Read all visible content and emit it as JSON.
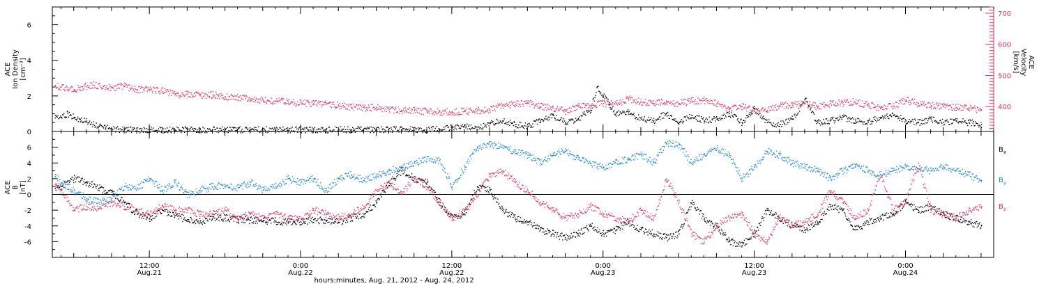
{
  "figure": {
    "xlabel": "hours:minutes, Aug. 21, 2012 - Aug. 24, 2012",
    "x_ticks": [
      {
        "t": 12,
        "time": "12:00",
        "date": "Aug.21"
      },
      {
        "t": 24,
        "time": "0:00",
        "date": "Aug.22"
      },
      {
        "t": 36,
        "time": "12:00",
        "date": "Aug.22"
      },
      {
        "t": 48,
        "time": "0:00",
        "date": "Aug.23"
      },
      {
        "t": 60,
        "time": "12:00",
        "date": "Aug.23"
      },
      {
        "t": 72,
        "time": "0:00",
        "date": "Aug.24"
      }
    ]
  },
  "colors": {
    "black": "#000000",
    "pink": "#e8325e",
    "blue": "#1f88e6"
  },
  "chart_data": [
    {
      "type": "scatter",
      "panel": "top",
      "xlim_hours_from_Aug21_00": [
        4.3,
        79.0
      ],
      "left_axis": {
        "label_lines": [
          "ACE",
          "Ion Density",
          "[cm⁻³]"
        ],
        "ylim": [
          0,
          7
        ],
        "ticks": [
          0,
          2,
          4,
          6
        ]
      },
      "right_axis": {
        "label_lines": [
          "ACE",
          "Velocity",
          "[km/s]"
        ],
        "ylim": [
          320,
          720
        ],
        "ticks": [
          400,
          500,
          600,
          700
        ]
      },
      "series": [
        {
          "name": "Density",
          "color": "black",
          "axis": "left",
          "x": [
            4.5,
            5,
            5.5,
            6,
            6.5,
            7,
            7.5,
            8,
            8.5,
            9,
            10,
            12,
            14,
            16,
            18,
            20,
            22,
            24,
            26,
            28,
            30,
            32,
            34,
            35,
            36,
            37,
            38,
            39,
            40,
            41,
            42,
            43,
            44,
            45,
            46,
            47,
            47.5,
            48,
            48.5,
            49,
            50,
            51,
            52,
            53,
            54,
            55,
            56,
            57,
            58,
            59,
            60,
            61,
            62,
            63,
            64,
            65,
            66,
            67,
            68,
            69,
            70,
            71,
            72,
            73,
            74,
            75,
            76,
            77,
            78
          ],
          "y": [
            0.9,
            0.8,
            1.0,
            0.8,
            0.7,
            0.6,
            0.4,
            0.3,
            0.2,
            0.15,
            0.1,
            0.1,
            0.1,
            0.1,
            0.1,
            0.1,
            0.1,
            0.1,
            0.1,
            0.1,
            0.1,
            0.1,
            0.1,
            0.15,
            0.2,
            0.3,
            0.1,
            0.5,
            0.6,
            0.4,
            0.3,
            0.6,
            0.9,
            0.5,
            0.7,
            1.2,
            2.5,
            2.0,
            1.5,
            1.0,
            1.1,
            0.7,
            0.6,
            1.0,
            0.5,
            0.9,
            0.6,
            0.7,
            1.0,
            0.5,
            1.3,
            0.5,
            0.4,
            0.7,
            1.8,
            0.5,
            0.6,
            0.8,
            0.6,
            0.5,
            0.8,
            0.9,
            0.6,
            0.5,
            0.7,
            0.5,
            0.6,
            0.5,
            0.4
          ]
        },
        {
          "name": "Velocity",
          "color": "pink",
          "axis": "right",
          "x": [
            4.5,
            6,
            7.5,
            9,
            10,
            11,
            12,
            13,
            14,
            15,
            16,
            17,
            18,
            19,
            20,
            21,
            22,
            23,
            24,
            25,
            26,
            27,
            28,
            29,
            30,
            31,
            32,
            33,
            34,
            35,
            36,
            37,
            38,
            39,
            40,
            41,
            42,
            43,
            44,
            45,
            46,
            47,
            48,
            49,
            50,
            51,
            52,
            53,
            54,
            55,
            56,
            57,
            58,
            59,
            60,
            61,
            62,
            63,
            64,
            65,
            66,
            67,
            68,
            69,
            70,
            71,
            72,
            73,
            74,
            75,
            76,
            77,
            78
          ],
          "y": [
            465,
            455,
            470,
            460,
            465,
            455,
            455,
            450,
            440,
            440,
            435,
            438,
            430,
            430,
            425,
            420,
            418,
            415,
            412,
            410,
            408,
            403,
            398,
            395,
            398,
            390,
            388,
            387,
            385,
            383,
            382,
            385,
            387,
            390,
            405,
            408,
            412,
            400,
            395,
            385,
            400,
            405,
            410,
            408,
            425,
            415,
            410,
            415,
            410,
            418,
            420,
            410,
            395,
            400,
            385,
            388,
            402,
            405,
            410,
            400,
            410,
            412,
            415,
            405,
            395,
            402,
            420,
            410,
            403,
            400,
            398,
            393,
            390
          ]
        }
      ]
    },
    {
      "type": "scatter",
      "panel": "bottom",
      "xlim_hours_from_Aug21_00": [
        4.3,
        79.0
      ],
      "axis": {
        "label_lines": [
          "ACE",
          "B",
          "[nT]"
        ],
        "ylim": [
          -8,
          8
        ],
        "ticks": [
          -6,
          -4,
          -2,
          0,
          2,
          4,
          6
        ],
        "zero_line": true
      },
      "legend": [
        {
          "text": "B",
          "sub": "x",
          "color": "black"
        },
        {
          "text": "B",
          "sub": "y",
          "color": "blue"
        },
        {
          "text": "B",
          "sub": "z",
          "color": "pink"
        }
      ],
      "series": [
        {
          "name": "Bx",
          "color": "black",
          "x": [
            4.5,
            5,
            6,
            7,
            8,
            9,
            10,
            11,
            12,
            13,
            14,
            15,
            16,
            17,
            18,
            19,
            20,
            21,
            22,
            23,
            24,
            25,
            26,
            27,
            28,
            29,
            30,
            31,
            32,
            33,
            34,
            35,
            36,
            37,
            38,
            39,
            40,
            41,
            42,
            43,
            44,
            45,
            46,
            47,
            48,
            49,
            50,
            51,
            52,
            53,
            54,
            55,
            56,
            57,
            58,
            59,
            60,
            61,
            62,
            63,
            64,
            65,
            66,
            67,
            68,
            69,
            70,
            71,
            72,
            73,
            74,
            75,
            76,
            77,
            78
          ],
          "y": [
            0.8,
            1.0,
            2.0,
            1.5,
            0.8,
            0.3,
            -1.0,
            -2.5,
            -3.0,
            -2.0,
            -2.7,
            -3.2,
            -3.5,
            -2.8,
            -3.0,
            -3.2,
            -3.3,
            -3.3,
            -3.4,
            -3.5,
            -3.5,
            -3.2,
            -3.4,
            -3.5,
            -3.0,
            -2.5,
            -1.0,
            1.5,
            3.0,
            2.0,
            1.5,
            -1.0,
            -3.0,
            -2.5,
            1.0,
            0.5,
            -2.0,
            -3.0,
            -3.5,
            -4.5,
            -5.0,
            -5.5,
            -5.0,
            -4.0,
            -5.0,
            -4.5,
            -3.5,
            -4.5,
            -5.0,
            -5.5,
            -5.0,
            -1.0,
            -3.0,
            -4.0,
            -6.0,
            -6.5,
            -5.0,
            -2.0,
            -3.0,
            -4.0,
            -4.5,
            -3.5,
            -1.5,
            -2.0,
            -4.5,
            -3.5,
            -3.0,
            -2.5,
            -1.0,
            -2.0,
            -1.5,
            -2.5,
            -3.0,
            -3.5,
            -4.0
          ]
        },
        {
          "name": "By",
          "color": "blue",
          "x": [
            4.5,
            5,
            6,
            7,
            8,
            9,
            10,
            11,
            12,
            13,
            14,
            15,
            16,
            17,
            18,
            19,
            20,
            21,
            22,
            23,
            24,
            25,
            26,
            27,
            28,
            29,
            30,
            31,
            32,
            33,
            34,
            35,
            36,
            37,
            38,
            39,
            40,
            41,
            42,
            43,
            44,
            45,
            46,
            47,
            48,
            49,
            50,
            51,
            52,
            53,
            54,
            55,
            56,
            57,
            58,
            59,
            60,
            61,
            62,
            63,
            64,
            65,
            66,
            67,
            68,
            69,
            70,
            71,
            72,
            73,
            74,
            75,
            76,
            77,
            78
          ],
          "y": [
            2.3,
            1.5,
            0.5,
            -0.5,
            -1.0,
            -0.5,
            1.0,
            0.8,
            2.0,
            0.5,
            1.5,
            0.0,
            0.5,
            1.0,
            1.2,
            0.8,
            1.5,
            0.5,
            1.0,
            2.0,
            1.5,
            2.0,
            0.5,
            2.0,
            2.5,
            1.8,
            2.5,
            3.0,
            3.5,
            4.0,
            4.5,
            4.3,
            1.0,
            3.5,
            6.0,
            6.3,
            6.0,
            5.5,
            5.0,
            4.0,
            5.0,
            5.5,
            4.5,
            4.0,
            3.5,
            4.0,
            4.5,
            5.0,
            4.0,
            6.5,
            6.3,
            4.0,
            5.0,
            5.8,
            5.0,
            2.0,
            3.5,
            5.5,
            5.0,
            4.0,
            3.5,
            3.0,
            2.0,
            3.0,
            3.5,
            3.0,
            2.5,
            3.0,
            3.5,
            3.2,
            3.0,
            3.5,
            3.0,
            2.5,
            1.8
          ]
        },
        {
          "name": "Bz",
          "color": "pink",
          "x": [
            4.5,
            5,
            6,
            7,
            8,
            9,
            10,
            11,
            12,
            13,
            14,
            15,
            16,
            17,
            18,
            19,
            20,
            21,
            22,
            23,
            24,
            25,
            26,
            27,
            28,
            29,
            30,
            31,
            32,
            33,
            34,
            35,
            36,
            37,
            38,
            39,
            40,
            41,
            42,
            43,
            44,
            45,
            46,
            47,
            48,
            49,
            50,
            51,
            52,
            53,
            54,
            55,
            56,
            57,
            58,
            59,
            60,
            61,
            62,
            63,
            64,
            65,
            66,
            67,
            68,
            69,
            70,
            71,
            72,
            73,
            74,
            75,
            76,
            77,
            78
          ],
          "y": [
            1.0,
            0.5,
            -2.0,
            -1.5,
            -1.8,
            -1.0,
            -1.5,
            -2.0,
            -2.5,
            -1.5,
            -2.0,
            -2.0,
            -2.5,
            -2.5,
            -2.0,
            -3.0,
            -2.5,
            -3.0,
            -2.5,
            -3.0,
            -3.0,
            -2.0,
            -2.5,
            -3.0,
            -2.5,
            -1.5,
            0.5,
            1.5,
            0.0,
            2.0,
            1.0,
            -1.0,
            -3.0,
            -2.0,
            0.0,
            2.5,
            3.0,
            1.5,
            0.5,
            -1.0,
            -2.0,
            -3.0,
            -2.5,
            -1.5,
            -2.5,
            -3.0,
            -3.5,
            -2.0,
            -3.0,
            2.0,
            -1.0,
            -5.0,
            -6.0,
            -4.0,
            -3.0,
            -2.5,
            -5.0,
            -6.0,
            -3.0,
            -4.0,
            -3.5,
            -2.5,
            0.5,
            -1.0,
            -3.0,
            -2.0,
            2.5,
            -2.0,
            -1.0,
            4.0,
            -2.0,
            -2.5,
            -3.0,
            -2.0,
            -1.5
          ]
        }
      ]
    }
  ]
}
